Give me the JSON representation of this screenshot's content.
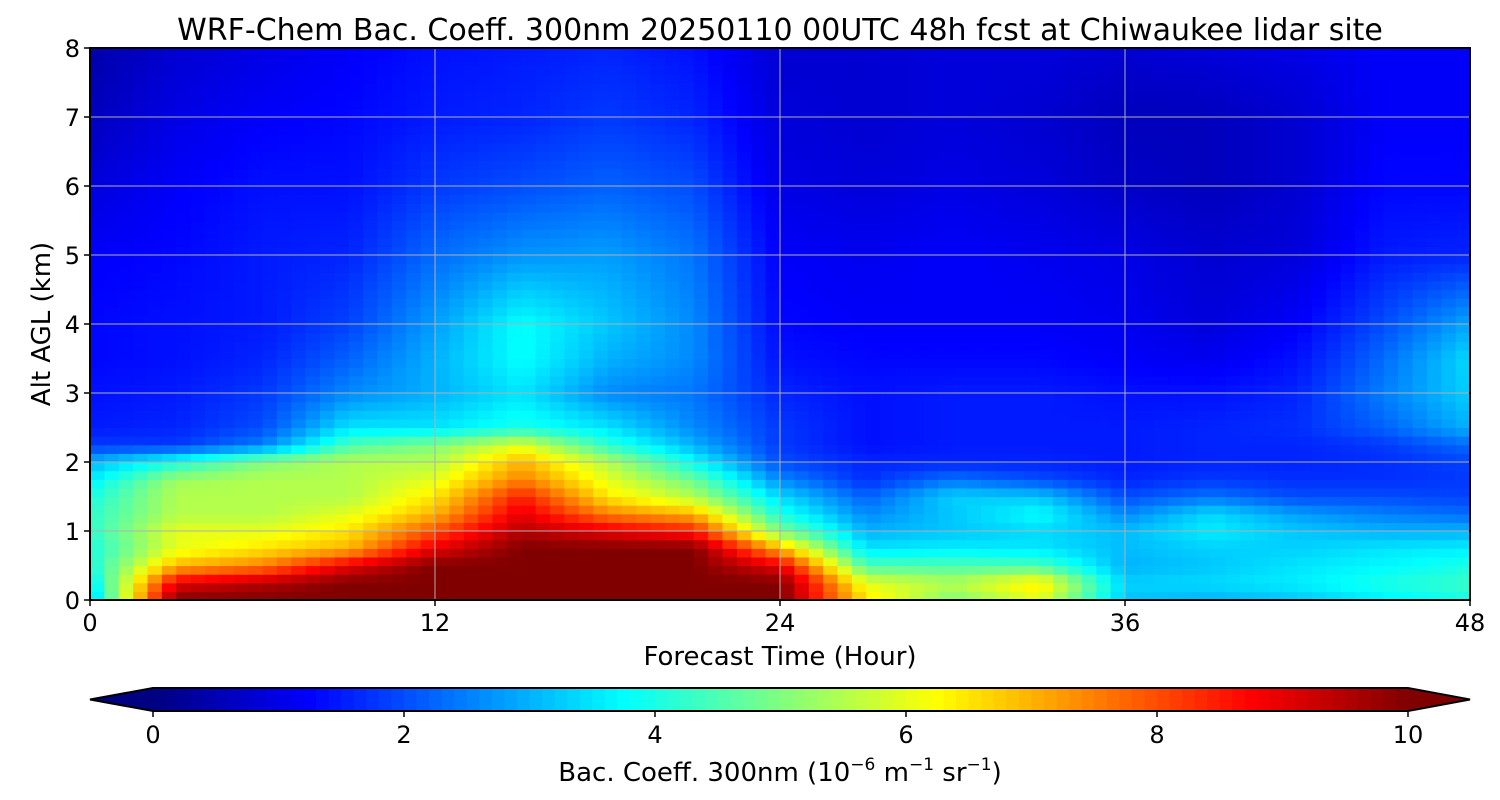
{
  "chart_data": {
    "type": "heatmap",
    "title": "WRF-Chem Bac. Coeff. 300nm  20250110 00UTC 48h fcst at Chiwaukee lidar site",
    "xlabel": "Forecast Time (Hour)",
    "ylabel": "Alt AGL (km)",
    "xlim": [
      0,
      48
    ],
    "ylim": [
      0,
      8
    ],
    "x_ticks": [
      0,
      12,
      24,
      36,
      48
    ],
    "y_ticks": [
      0,
      1,
      2,
      3,
      4,
      5,
      6,
      7,
      8
    ],
    "grid": true,
    "colormap": "jet",
    "colorbar": {
      "orientation": "horizontal",
      "position": "bottom",
      "label_main": "Bac. Coeff. 300nm  (10",
      "label_exp1": "−6",
      "label_unit1": " m",
      "label_exp2": "−1",
      "label_unit2": " sr",
      "label_exp3": "−1",
      "label_close": ")",
      "range": [
        0,
        10
      ],
      "ticks": [
        0,
        2,
        4,
        6,
        8,
        10
      ],
      "extend": "both"
    },
    "x": [
      0,
      3,
      6,
      9,
      12,
      15,
      18,
      21,
      24,
      27,
      30,
      33,
      36,
      39,
      42,
      45,
      48
    ],
    "y": [
      0,
      0.25,
      0.5,
      0.75,
      1,
      1.25,
      1.5,
      1.75,
      2,
      2.25,
      2.5,
      3,
      3.5,
      4,
      5,
      6,
      7,
      8
    ],
    "z": [
      [
        3.0,
        10,
        10,
        10,
        10,
        10,
        10,
        10,
        10,
        6.5,
        5.0,
        6.0,
        3.2,
        3.0,
        3.2,
        3.6,
        4.0
      ],
      [
        3.5,
        9.0,
        9.5,
        10,
        10,
        10,
        10,
        10,
        10,
        6.0,
        5.5,
        6.5,
        3.3,
        3.4,
        3.6,
        4.0,
        4.3
      ],
      [
        4.0,
        7.0,
        7.5,
        9.0,
        10,
        10,
        10,
        10,
        9.0,
        4.5,
        4.5,
        4.5,
        3.0,
        3.2,
        3.5,
        3.7,
        4.0
      ],
      [
        4.0,
        6.0,
        6.5,
        7.0,
        9.0,
        10,
        10,
        10,
        7.0,
        3.5,
        3.6,
        3.5,
        3.1,
        3.3,
        3.3,
        3.5,
        3.6
      ],
      [
        4.2,
        6.0,
        6.0,
        6.5,
        8.0,
        9.5,
        9.0,
        8.5,
        5.0,
        3.0,
        3.2,
        3.4,
        3.1,
        3.6,
        3.2,
        3.0,
        3.0
      ],
      [
        4.2,
        5.5,
        5.5,
        6.0,
        7.0,
        9.0,
        7.5,
        7.0,
        4.0,
        2.6,
        3.2,
        3.8,
        2.6,
        3.4,
        2.8,
        2.5,
        2.3
      ],
      [
        4.0,
        5.5,
        5.5,
        5.5,
        6.5,
        8.5,
        6.5,
        5.5,
        3.4,
        2.2,
        3.3,
        3.2,
        2.0,
        2.4,
        2.0,
        2.0,
        1.9
      ],
      [
        3.6,
        5.3,
        5.5,
        5.5,
        6.0,
        7.5,
        6.0,
        4.8,
        2.6,
        1.7,
        2.4,
        2.0,
        1.6,
        1.8,
        1.7,
        1.7,
        1.8
      ],
      [
        3.0,
        4.0,
        5.0,
        5.5,
        5.5,
        7.0,
        5.5,
        3.8,
        2.0,
        1.6,
        1.6,
        1.6,
        1.5,
        1.6,
        1.6,
        1.7,
        1.9
      ],
      [
        1.8,
        1.8,
        2.5,
        4.5,
        5.0,
        6.0,
        4.2,
        3.0,
        1.8,
        1.4,
        1.5,
        1.5,
        1.5,
        1.6,
        1.6,
        1.8,
        2.3
      ],
      [
        1.5,
        1.6,
        2.0,
        3.5,
        3.5,
        4.0,
        3.5,
        2.6,
        1.8,
        1.4,
        1.5,
        1.5,
        1.5,
        1.6,
        1.7,
        2.2,
        3.0
      ],
      [
        1.4,
        1.5,
        1.8,
        2.6,
        3.0,
        3.5,
        2.6,
        2.4,
        1.6,
        1.4,
        1.5,
        1.5,
        1.4,
        1.4,
        1.6,
        2.5,
        3.3
      ],
      [
        1.3,
        1.4,
        1.6,
        2.2,
        3.0,
        3.8,
        3.0,
        2.6,
        1.4,
        1.3,
        1.3,
        1.3,
        1.2,
        1.1,
        1.4,
        2.3,
        3.4
      ],
      [
        1.3,
        1.4,
        1.5,
        1.9,
        2.8,
        3.8,
        3.2,
        2.6,
        1.3,
        1.2,
        1.2,
        1.2,
        1.1,
        0.9,
        1.2,
        2.0,
        2.9
      ],
      [
        1.2,
        1.3,
        1.5,
        1.6,
        2.3,
        2.7,
        2.8,
        2.4,
        1.2,
        1.1,
        1.2,
        1.1,
        1.0,
        0.8,
        0.9,
        1.5,
        1.6
      ],
      [
        0.9,
        1.2,
        1.4,
        1.4,
        1.8,
        2.0,
        2.2,
        2.0,
        1.0,
        0.9,
        1.0,
        0.9,
        0.7,
        0.6,
        0.8,
        1.3,
        1.3
      ],
      [
        0.6,
        1.0,
        1.2,
        1.3,
        1.5,
        1.6,
        1.8,
        1.6,
        0.9,
        0.8,
        0.9,
        0.8,
        0.6,
        0.6,
        0.8,
        1.2,
        1.2
      ],
      [
        0.4,
        0.8,
        1.0,
        1.2,
        1.4,
        1.5,
        1.6,
        1.4,
        0.8,
        0.8,
        0.9,
        0.9,
        0.8,
        0.9,
        1.0,
        1.2,
        1.2
      ]
    ]
  }
}
